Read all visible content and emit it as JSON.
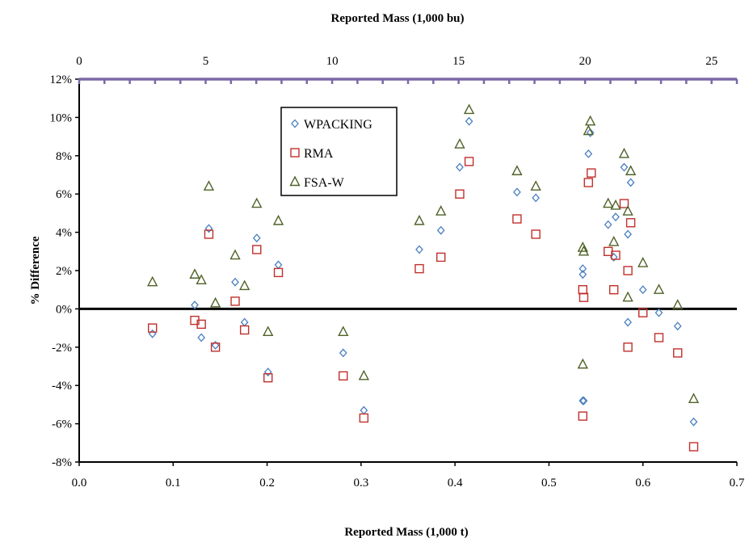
{
  "chart_data": {
    "type": "scatter",
    "xlabel": "Reported Mass (1,000 t)",
    "x2label": "Reported Mass (1,000 bu)",
    "ylabel": "% Difference",
    "xlim": [
      0.0,
      0.7
    ],
    "x_ticks": [
      "0.0",
      "0.1",
      "0.2",
      "0.3",
      "0.4",
      "0.5",
      "0.6",
      "0.7"
    ],
    "x2lim": [
      0,
      26
    ],
    "x2_ticks": [
      "0",
      "5",
      "10",
      "15",
      "20",
      "25"
    ],
    "ylim": [
      -8,
      12
    ],
    "y_ticks": [
      "-8%",
      "-6%",
      "-4%",
      "-2%",
      "0%",
      "2%",
      "4%",
      "6%",
      "8%",
      "10%",
      "12%"
    ],
    "grid": false,
    "legend_position": "upper-center",
    "colors": {
      "WPACKING": "#4a7fc1",
      "RMA": "#c0302b",
      "FSA-W": "#4f6228",
      "top_axis": "#7b68a6"
    },
    "series": [
      {
        "name": "WPACKING",
        "marker": "diamond",
        "x": [
          0.078,
          0.123,
          0.13,
          0.138,
          0.145,
          0.166,
          0.176,
          0.189,
          0.201,
          0.212,
          0.281,
          0.303,
          0.362,
          0.385,
          0.405,
          0.415,
          0.466,
          0.486,
          0.536,
          0.536,
          0.537,
          0.542,
          0.544,
          0.563,
          0.569,
          0.571,
          0.58,
          0.584,
          0.587,
          0.584,
          0.536,
          0.6,
          0.617,
          0.637,
          0.654
        ],
        "y": [
          -1.3,
          0.2,
          -1.5,
          4.2,
          -1.9,
          1.4,
          -0.7,
          3.7,
          -3.3,
          2.3,
          -2.3,
          -5.3,
          3.1,
          4.1,
          7.4,
          9.8,
          6.1,
          5.8,
          2.1,
          1.8,
          -4.8,
          8.1,
          9.2,
          4.4,
          2.7,
          4.8,
          7.4,
          3.9,
          6.6,
          -0.7,
          -4.8,
          1.0,
          -0.2,
          -0.9,
          -5.9
        ]
      },
      {
        "name": "RMA",
        "marker": "square",
        "x": [
          0.078,
          0.123,
          0.13,
          0.138,
          0.145,
          0.166,
          0.176,
          0.189,
          0.201,
          0.212,
          0.281,
          0.303,
          0.362,
          0.385,
          0.405,
          0.415,
          0.466,
          0.486,
          0.536,
          0.537,
          0.542,
          0.545,
          0.563,
          0.569,
          0.571,
          0.58,
          0.584,
          0.587,
          0.584,
          0.536,
          0.6,
          0.617,
          0.637,
          0.654
        ],
        "y": [
          -1.0,
          -0.6,
          -0.8,
          3.9,
          -2.0,
          0.4,
          -1.1,
          3.1,
          -3.6,
          1.9,
          -3.5,
          -5.7,
          2.1,
          2.7,
          6.0,
          7.7,
          4.7,
          3.9,
          1.0,
          0.6,
          6.6,
          7.1,
          3.0,
          1.0,
          2.8,
          5.5,
          2.0,
          4.5,
          -2.0,
          -5.6,
          -0.2,
          -1.5,
          -2.3,
          -7.2
        ]
      },
      {
        "name": "FSA-W",
        "marker": "triangle",
        "x": [
          0.078,
          0.123,
          0.13,
          0.138,
          0.145,
          0.166,
          0.176,
          0.189,
          0.201,
          0.212,
          0.281,
          0.303,
          0.362,
          0.385,
          0.405,
          0.415,
          0.466,
          0.486,
          0.536,
          0.537,
          0.542,
          0.544,
          0.563,
          0.569,
          0.571,
          0.58,
          0.584,
          0.587,
          0.584,
          0.536,
          0.6,
          0.617,
          0.637,
          0.654
        ],
        "y": [
          1.4,
          1.8,
          1.5,
          6.4,
          0.3,
          2.8,
          1.2,
          5.5,
          -1.2,
          4.6,
          -1.2,
          -3.5,
          4.6,
          5.1,
          8.6,
          10.4,
          7.2,
          6.4,
          3.2,
          3.0,
          9.3,
          9.8,
          5.5,
          3.5,
          5.4,
          8.1,
          5.1,
          7.2,
          0.6,
          -2.9,
          2.4,
          1.0,
          0.2,
          -4.7
        ]
      }
    ]
  }
}
